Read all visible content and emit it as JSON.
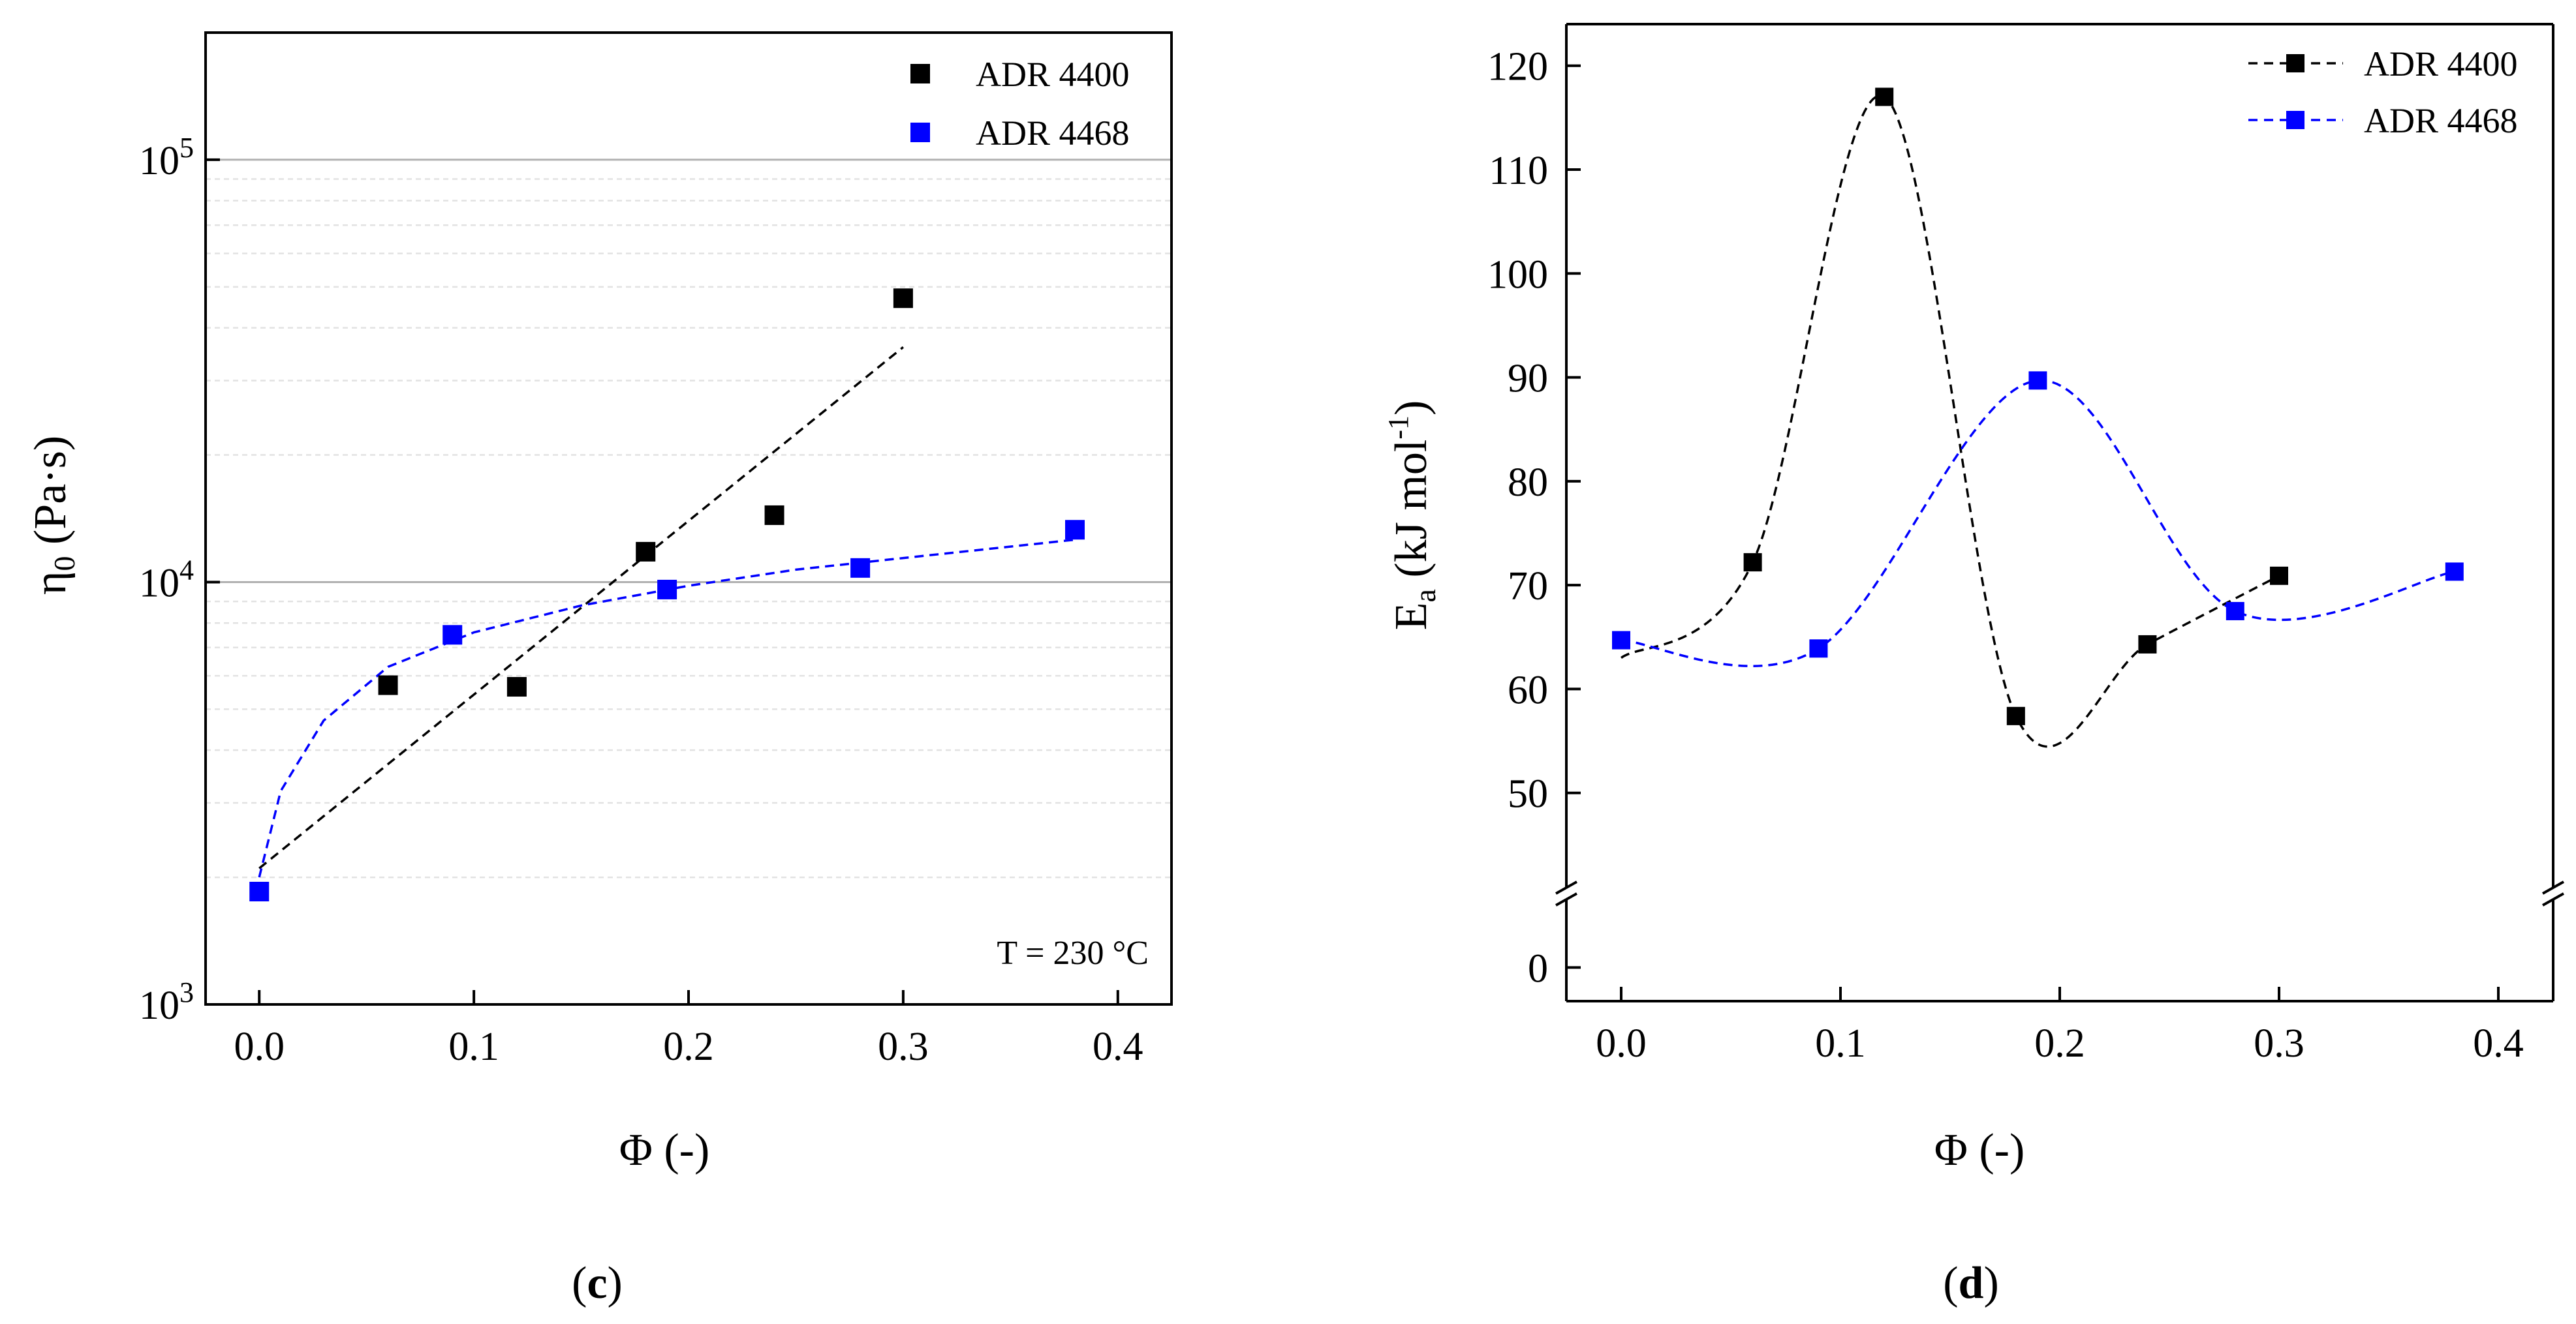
{
  "figure": {
    "panel_c_label": {
      "open": "(",
      "letter": "c",
      "close": ")"
    },
    "panel_d_label": {
      "open": "(",
      "letter": "d",
      "close": ")"
    }
  },
  "colors": {
    "series_1": "#000000",
    "series_2": "#0000ff",
    "major_grid": "#b0b0b0",
    "minor_grid": "#e2e2e2"
  },
  "chart_data": [
    {
      "id": "c",
      "type": "scatter",
      "title": "",
      "xlabel": "Φ (-)",
      "ylabel": {
        "main": "η",
        "sub": "0",
        "unit": " (Pa·s)"
      },
      "xlim": [
        -0.025,
        0.425
      ],
      "ylim": [
        1000,
        200000
      ],
      "yscale": "log",
      "x_ticks": [
        0.0,
        0.1,
        0.2,
        0.3,
        0.4
      ],
      "x_tick_labels": [
        "0.0",
        "0.1",
        "0.2",
        "0.3",
        "0.4"
      ],
      "y_ticks": [
        {
          "value": 1000,
          "base": "10",
          "exp": "3"
        },
        {
          "value": 10000,
          "base": "10",
          "exp": "4"
        },
        {
          "value": 100000,
          "base": "10",
          "exp": "5"
        }
      ],
      "grid": "horizontal major and minor",
      "legend_position": "top-right",
      "annotation": "T = 230 °C",
      "series": [
        {
          "name": "ADR 4400",
          "color": "#000000",
          "x": [
            0.06,
            0.12,
            0.18,
            0.24,
            0.3
          ],
          "y": [
            5700,
            5650,
            11800,
            14400,
            47000
          ],
          "fit": {
            "type": "exponential",
            "x_range": [
              0.0,
              0.3
            ],
            "y_start": 2100,
            "y_end": 36000
          }
        },
        {
          "name": "ADR 4468",
          "color": "#0000ff",
          "x": [
            0.0,
            0.09,
            0.19,
            0.28,
            0.38
          ],
          "y": [
            1850,
            7500,
            9600,
            10800,
            13300
          ],
          "fit": {
            "type": "saturating",
            "x": [
              0.0,
              0.01,
              0.03,
              0.06,
              0.1,
              0.15,
              0.2,
              0.25,
              0.3,
              0.38
            ],
            "y": [
              2000,
              3200,
              4700,
              6300,
              7600,
              8800,
              9800,
              10700,
              11400,
              12600
            ]
          }
        }
      ]
    },
    {
      "id": "d",
      "type": "line",
      "title": "",
      "xlabel": "Φ (-)",
      "ylabel": {
        "main": "E",
        "sub": "a",
        "unit_prefix": " (kJ mol",
        "sup": "-1",
        "unit_suffix": ")"
      },
      "xlim": [
        -0.025,
        0.425
      ],
      "ylim_upper": [
        40,
        124
      ],
      "ylim_lower": [
        -2,
        4
      ],
      "axis_break": true,
      "x_ticks": [
        0.0,
        0.1,
        0.2,
        0.3,
        0.4
      ],
      "x_tick_labels": [
        "0.0",
        "0.1",
        "0.2",
        "0.3",
        "0.4"
      ],
      "y_ticks": [
        0,
        50,
        60,
        70,
        80,
        90,
        100,
        110,
        120
      ],
      "y_tick_labels": [
        "0",
        "50",
        "60",
        "70",
        "80",
        "90",
        "100",
        "110",
        "120"
      ],
      "grid": "none",
      "legend_position": "top-right",
      "series": [
        {
          "name": "ADR 4400",
          "color": "#000000",
          "x": [
            0.0,
            0.06,
            0.12,
            0.18,
            0.24,
            0.3
          ],
          "y": [
            63,
            72.2,
            117,
            57.4,
            64.3,
            70.9
          ]
        },
        {
          "name": "ADR 4468",
          "color": "#0000ff",
          "x": [
            0.0,
            0.09,
            0.19,
            0.28,
            0.38
          ],
          "y": [
            64.7,
            63.9,
            89.7,
            67.5,
            71.3
          ]
        }
      ]
    }
  ]
}
